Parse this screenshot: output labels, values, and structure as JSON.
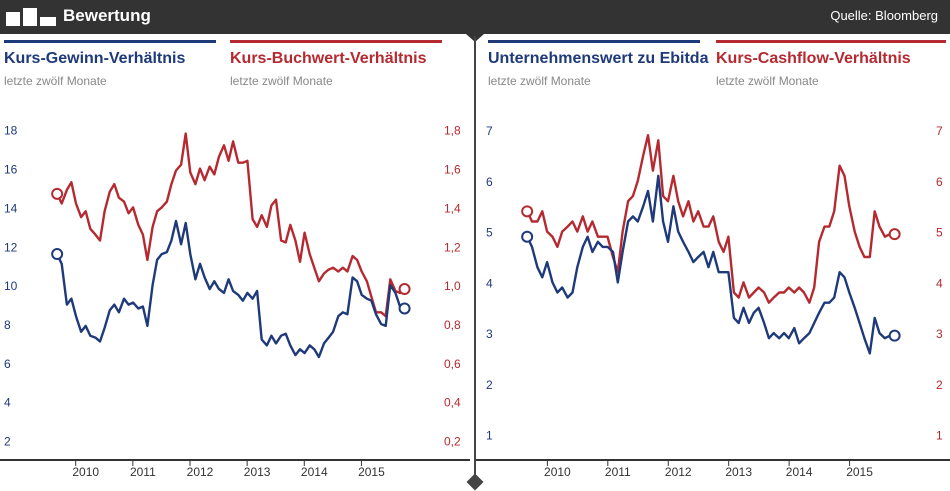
{
  "header": {
    "title": "Bewertung",
    "source": "Quelle: Bloomberg",
    "logo_icon": "bar-logo-icon"
  },
  "colors": {
    "blue": "#1f3a7a",
    "red": "#b52a30",
    "axis": "#333333"
  },
  "panels": [
    {
      "left_title": "Kurs-Gewinn-Verhältnis",
      "left_subtitle": "letzte zwölf Monate",
      "right_title": "Kurs-Buchwert-Verhältnis",
      "right_subtitle": "letzte zwölf Monate"
    },
    {
      "left_title": "Unternehmenswert zu Ebitda",
      "left_subtitle": "letzte zwölf Monate",
      "right_title": "Kurs-Cashflow-Verhältnis",
      "right_subtitle": "letzte zwölf Monate"
    }
  ],
  "chart_data": [
    {
      "type": "line",
      "title": "Kurs-Gewinn-Verhältnis / Kurs-Buchwert-Verhältnis",
      "x_ticks": [
        "2010",
        "2011",
        "2012",
        "2013",
        "2014",
        "2015"
      ],
      "x_range": [
        2009.2,
        2016.2
      ],
      "left_axis": {
        "ticks": [
          "2",
          "4",
          "6",
          "8",
          "10",
          "12",
          "14",
          "16",
          "18"
        ],
        "range": [
          1,
          18.5
        ]
      },
      "right_axis": {
        "ticks": [
          "0,2",
          "0,4",
          "0,6",
          "0,8",
          "1,0",
          "1,2",
          "1,4",
          "1,6",
          "1,8"
        ],
        "range": [
          0.1,
          1.85
        ]
      },
      "series": [
        {
          "name": "Kurs-Gewinn-Verhältnis",
          "axis": "left",
          "color": "blue",
          "x": [
            2009.5,
            2009.58,
            2009.67,
            2009.75,
            2009.83,
            2009.92,
            2010,
            2010.08,
            2010.17,
            2010.25,
            2010.33,
            2010.42,
            2010.5,
            2010.58,
            2010.67,
            2010.75,
            2010.83,
            2010.92,
            2011,
            2011.08,
            2011.17,
            2011.25,
            2011.33,
            2011.42,
            2011.5,
            2011.58,
            2011.67,
            2011.75,
            2011.83,
            2011.92,
            2012,
            2012.08,
            2012.17,
            2012.25,
            2012.33,
            2012.42,
            2012.5,
            2012.58,
            2012.67,
            2012.75,
            2012.83,
            2012.92,
            2013,
            2013.08,
            2013.17,
            2013.25,
            2013.33,
            2013.42,
            2013.5,
            2013.58,
            2013.67,
            2013.75,
            2013.83,
            2013.92,
            2014,
            2014.08,
            2014.17,
            2014.25,
            2014.33,
            2014.42,
            2014.5,
            2014.58,
            2014.67,
            2014.75,
            2014.83,
            2014.92,
            2015,
            2015.08,
            2015.17,
            2015.25,
            2015.33,
            2015.42,
            2015.5,
            2015.58
          ],
          "values": [
            11.6,
            11.1,
            9.0,
            9.3,
            8.4,
            7.6,
            7.9,
            7.4,
            7.3,
            7.1,
            7.8,
            8.7,
            9.0,
            8.6,
            9.3,
            9.0,
            9.1,
            8.8,
            8.9,
            7.9,
            10.0,
            11.3,
            11.6,
            11.7,
            12.3,
            13.3,
            12.1,
            13.2,
            11.6,
            10.3,
            11.1,
            10.4,
            9.8,
            10.2,
            9.8,
            9.6,
            10.3,
            9.7,
            9.5,
            9.2,
            9.6,
            9.3,
            9.7,
            7.2,
            6.9,
            7.4,
            7.0,
            7.4,
            7.5,
            6.9,
            6.4,
            6.7,
            6.5,
            6.9,
            6.7,
            6.3,
            7.0,
            7.3,
            7.6,
            8.4,
            8.6,
            8.5,
            10.4,
            10.2,
            9.5,
            9.3,
            9.2,
            8.5,
            8.0,
            7.9,
            10.0,
            9.6,
            8.9,
            8.8
          ]
        },
        {
          "name": "Kurs-Buchwert-Verhältnis",
          "axis": "right",
          "color": "red",
          "x": [
            2009.5,
            2009.58,
            2009.67,
            2009.75,
            2009.83,
            2009.92,
            2010,
            2010.08,
            2010.17,
            2010.25,
            2010.33,
            2010.42,
            2010.5,
            2010.58,
            2010.67,
            2010.75,
            2010.83,
            2010.92,
            2011,
            2011.08,
            2011.17,
            2011.25,
            2011.33,
            2011.42,
            2011.5,
            2011.58,
            2011.67,
            2011.75,
            2011.83,
            2011.92,
            2012,
            2012.08,
            2012.17,
            2012.25,
            2012.33,
            2012.42,
            2012.5,
            2012.58,
            2012.67,
            2012.75,
            2012.83,
            2012.92,
            2013,
            2013.08,
            2013.17,
            2013.25,
            2013.33,
            2013.42,
            2013.5,
            2013.58,
            2013.67,
            2013.75,
            2013.83,
            2013.92,
            2014,
            2014.08,
            2014.17,
            2014.25,
            2014.33,
            2014.42,
            2014.5,
            2014.58,
            2014.67,
            2014.75,
            2014.83,
            2014.92,
            2015,
            2015.08,
            2015.17,
            2015.25,
            2015.33,
            2015.42,
            2015.5,
            2015.58
          ],
          "values": [
            1.47,
            1.42,
            1.49,
            1.53,
            1.42,
            1.35,
            1.38,
            1.29,
            1.26,
            1.23,
            1.38,
            1.48,
            1.52,
            1.45,
            1.43,
            1.37,
            1.4,
            1.31,
            1.26,
            1.13,
            1.3,
            1.38,
            1.4,
            1.43,
            1.52,
            1.59,
            1.62,
            1.78,
            1.58,
            1.52,
            1.6,
            1.54,
            1.61,
            1.57,
            1.66,
            1.72,
            1.64,
            1.74,
            1.63,
            1.63,
            1.64,
            1.34,
            1.3,
            1.36,
            1.3,
            1.41,
            1.44,
            1.23,
            1.22,
            1.31,
            1.23,
            1.12,
            1.27,
            1.16,
            1.09,
            1.02,
            1.06,
            1.08,
            1.09,
            1.07,
            1.09,
            1.07,
            1.15,
            1.13,
            1.07,
            1.02,
            0.94,
            0.86,
            0.86,
            0.84,
            1.03,
            0.97,
            0.96,
            0.98
          ]
        }
      ]
    },
    {
      "type": "line",
      "title": "Unternehmenswert zu Ebitda / Kurs-Cashflow-Verhältnis",
      "x_ticks": [
        "2010",
        "2011",
        "2012",
        "2013",
        "2014",
        "2015"
      ],
      "x_range": [
        2009.15,
        2016.0
      ],
      "left_axis": {
        "ticks": [
          "1",
          "2",
          "3",
          "4",
          "5",
          "6",
          "7"
        ],
        "range": [
          0.5,
          7.2
        ]
      },
      "right_axis": {
        "ticks": [
          "1",
          "2",
          "3",
          "4",
          "5",
          "6",
          "7"
        ],
        "range": [
          0.5,
          7.2
        ]
      },
      "series": [
        {
          "name": "Unternehmenswert zu Ebitda",
          "axis": "left",
          "color": "blue",
          "x": [
            2009.5,
            2009.58,
            2009.67,
            2009.75,
            2009.83,
            2009.92,
            2010,
            2010.08,
            2010.17,
            2010.25,
            2010.33,
            2010.42,
            2010.5,
            2010.58,
            2010.67,
            2010.75,
            2010.83,
            2010.92,
            2011,
            2011.08,
            2011.17,
            2011.25,
            2011.33,
            2011.42,
            2011.5,
            2011.58,
            2011.67,
            2011.75,
            2011.83,
            2011.92,
            2012,
            2012.08,
            2012.17,
            2012.25,
            2012.33,
            2012.42,
            2012.5,
            2012.58,
            2012.67,
            2012.75,
            2012.83,
            2012.92,
            2013,
            2013.08,
            2013.17,
            2013.25,
            2013.33,
            2013.42,
            2013.5,
            2013.58,
            2013.67,
            2013.75,
            2013.83,
            2013.92,
            2014,
            2014.08,
            2014.17,
            2014.25,
            2014.33,
            2014.42,
            2014.5,
            2014.58,
            2014.67,
            2014.75,
            2014.83,
            2014.92,
            2015,
            2015.08,
            2015.17,
            2015.25,
            2015.33,
            2015.42,
            2015.5,
            2015.58
          ],
          "values": [
            4.9,
            4.7,
            4.3,
            4.1,
            4.4,
            4.0,
            3.8,
            3.9,
            3.7,
            3.8,
            4.3,
            4.7,
            4.9,
            4.6,
            4.8,
            4.7,
            4.7,
            4.6,
            4.0,
            4.6,
            5.2,
            5.3,
            5.2,
            5.5,
            5.8,
            5.2,
            6.1,
            5.2,
            4.8,
            5.5,
            5.0,
            4.8,
            4.6,
            4.4,
            4.5,
            4.6,
            4.3,
            4.6,
            4.2,
            4.2,
            4.2,
            3.3,
            3.2,
            3.5,
            3.2,
            3.4,
            3.5,
            3.2,
            2.9,
            3.0,
            2.9,
            3.0,
            2.9,
            3.1,
            2.8,
            2.9,
            3.0,
            3.2,
            3.4,
            3.6,
            3.6,
            3.7,
            4.2,
            4.1,
            3.8,
            3.5,
            3.2,
            2.9,
            2.6,
            3.3,
            3.0,
            2.9,
            2.95,
            2.95
          ]
        },
        {
          "name": "Kurs-Cashflow-Verhältnis",
          "axis": "right",
          "color": "red",
          "x": [
            2009.5,
            2009.58,
            2009.67,
            2009.75,
            2009.83,
            2009.92,
            2010,
            2010.08,
            2010.17,
            2010.25,
            2010.33,
            2010.42,
            2010.5,
            2010.58,
            2010.67,
            2010.75,
            2010.83,
            2010.92,
            2011,
            2011.08,
            2011.17,
            2011.25,
            2011.33,
            2011.42,
            2011.5,
            2011.58,
            2011.67,
            2011.75,
            2011.83,
            2011.92,
            2012,
            2012.08,
            2012.17,
            2012.25,
            2012.33,
            2012.42,
            2012.5,
            2012.58,
            2012.67,
            2012.75,
            2012.83,
            2012.92,
            2013,
            2013.08,
            2013.17,
            2013.25,
            2013.33,
            2013.42,
            2013.5,
            2013.58,
            2013.67,
            2013.75,
            2013.83,
            2013.92,
            2014,
            2014.08,
            2014.17,
            2014.25,
            2014.33,
            2014.42,
            2014.5,
            2014.58,
            2014.67,
            2014.75,
            2014.83,
            2014.92,
            2015,
            2015.08,
            2015.17,
            2015.25,
            2015.33,
            2015.42,
            2015.5,
            2015.58
          ],
          "values": [
            5.4,
            5.2,
            5.2,
            5.4,
            5.0,
            4.9,
            4.7,
            5.0,
            5.1,
            5.2,
            5.0,
            5.3,
            5.0,
            5.2,
            4.9,
            4.9,
            4.9,
            4.5,
            4.2,
            5.0,
            5.6,
            5.7,
            6.0,
            6.5,
            6.9,
            6.2,
            6.8,
            5.7,
            5.6,
            6.1,
            5.6,
            5.3,
            5.6,
            5.2,
            5.4,
            5.1,
            5.1,
            5.3,
            4.8,
            4.6,
            4.9,
            3.8,
            3.7,
            4.0,
            3.7,
            3.8,
            3.9,
            3.8,
            3.6,
            3.7,
            3.8,
            3.8,
            3.9,
            3.8,
            3.9,
            3.8,
            3.6,
            3.9,
            4.8,
            5.1,
            5.1,
            5.4,
            6.3,
            6.1,
            5.5,
            5.0,
            4.7,
            4.5,
            4.5,
            5.4,
            5.1,
            4.9,
            4.95,
            4.95
          ]
        }
      ]
    }
  ]
}
